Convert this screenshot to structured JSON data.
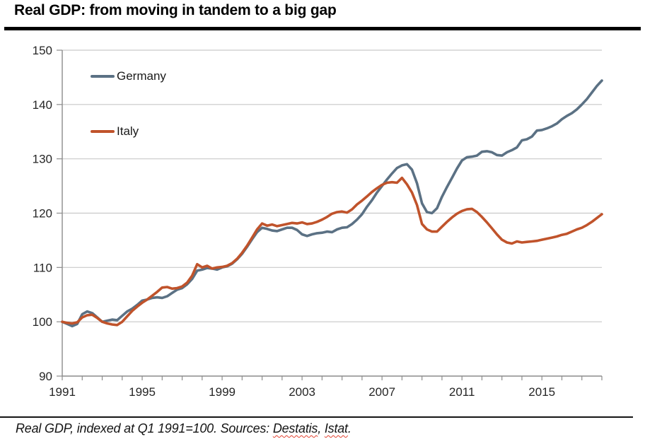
{
  "page": {
    "title": "Real GDP: from moving in tandem to a big gap"
  },
  "footer": {
    "prefix": "Real GDP, indexed at Q1 1991=100. Sources: ",
    "source1": "Destatis",
    "sep": ", ",
    "source2": "Istat",
    "end": "."
  },
  "chart_data": {
    "type": "line",
    "title": "Real GDP: from moving in tandem to a big gap",
    "xlabel": "",
    "ylabel": "",
    "x_start": 1991.0,
    "x_step": 0.25,
    "x_axis_end": 2018.0,
    "ylim": [
      90,
      150
    ],
    "y_ticks": [
      90,
      100,
      110,
      120,
      130,
      140,
      150
    ],
    "x_ticks_labeled": [
      1991,
      1995,
      1999,
      2003,
      2007,
      2011,
      2015
    ],
    "grid": "horizontal",
    "legend_position": "top-left-inside",
    "colors": {
      "grid": "#c9c9c9",
      "axis": "#8c8c8c",
      "tick_text": "#262626"
    },
    "series": [
      {
        "name": "Germany",
        "color": "#5b7184",
        "values": [
          100.0,
          99.6,
          99.2,
          99.6,
          101.4,
          101.9,
          101.6,
          100.8,
          100.0,
          100.2,
          100.4,
          100.3,
          101.1,
          101.9,
          102.4,
          103.1,
          103.9,
          104.1,
          104.4,
          104.5,
          104.4,
          104.7,
          105.3,
          105.9,
          106.2,
          106.9,
          107.9,
          109.4,
          109.6,
          109.9,
          109.8,
          109.6,
          110.0,
          110.2,
          110.7,
          111.5,
          112.5,
          113.8,
          115.2,
          116.5,
          117.3,
          117.1,
          116.8,
          116.7,
          117.0,
          117.3,
          117.3,
          116.9,
          116.1,
          115.8,
          116.1,
          116.3,
          116.4,
          116.6,
          116.5,
          117.0,
          117.3,
          117.4,
          118.0,
          118.8,
          119.8,
          121.2,
          122.4,
          123.8,
          125.0,
          126.2,
          127.3,
          128.3,
          128.8,
          129.0,
          128.0,
          125.5,
          121.8,
          120.2,
          120.0,
          120.9,
          123.0,
          124.8,
          126.5,
          128.2,
          129.7,
          130.3,
          130.4,
          130.6,
          131.3,
          131.4,
          131.2,
          130.7,
          130.6,
          131.2,
          131.6,
          132.1,
          133.4,
          133.6,
          134.1,
          135.2,
          135.3,
          135.6,
          136.0,
          136.5,
          137.3,
          137.9,
          138.4,
          139.1,
          140.0,
          141.0,
          142.2,
          143.4,
          144.4
        ]
      },
      {
        "name": "Italy",
        "color": "#c0532b",
        "values": [
          100.0,
          99.8,
          99.7,
          99.9,
          100.8,
          101.2,
          101.3,
          100.7,
          100.0,
          99.7,
          99.5,
          99.4,
          100.0,
          101.0,
          102.0,
          102.8,
          103.5,
          104.1,
          104.8,
          105.5,
          106.3,
          106.4,
          106.1,
          106.2,
          106.5,
          107.2,
          108.5,
          110.6,
          110.0,
          110.3,
          109.8,
          110.0,
          110.1,
          110.3,
          110.8,
          111.6,
          112.7,
          114.0,
          115.5,
          117.0,
          118.1,
          117.7,
          117.9,
          117.6,
          117.8,
          118.0,
          118.2,
          118.1,
          118.3,
          118.0,
          118.1,
          118.4,
          118.8,
          119.3,
          119.9,
          120.2,
          120.3,
          120.1,
          120.7,
          121.6,
          122.3,
          123.1,
          123.9,
          124.6,
          125.2,
          125.6,
          125.7,
          125.6,
          126.5,
          125.3,
          123.8,
          121.5,
          118.0,
          117.0,
          116.6,
          116.6,
          117.5,
          118.4,
          119.2,
          119.9,
          120.4,
          120.7,
          120.8,
          120.2,
          119.3,
          118.3,
          117.2,
          116.1,
          115.1,
          114.6,
          114.4,
          114.8,
          114.6,
          114.7,
          114.8,
          114.9,
          115.1,
          115.3,
          115.5,
          115.7,
          116.0,
          116.2,
          116.6,
          117.0,
          117.3,
          117.8,
          118.4,
          119.1,
          119.8
        ]
      }
    ]
  }
}
